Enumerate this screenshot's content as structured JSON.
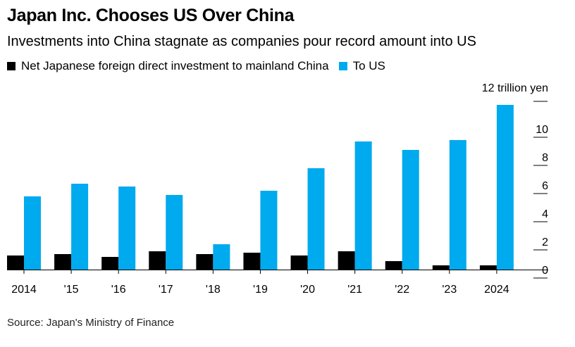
{
  "header": {
    "title": "Japan Inc. Chooses US Over China",
    "subtitle": "Investments into China stagnate as companies pour record amount into US"
  },
  "legend": {
    "china_label": "Net Japanese foreign direct investment to mainland China",
    "us_label": "To US"
  },
  "footer": {
    "source": "Source: Japan's Ministry of Finance"
  },
  "colors": {
    "china": "#000000",
    "us": "#00aaee"
  },
  "chart_data": {
    "type": "bar",
    "title": "Japan Inc. Chooses US Over China",
    "subtitle": "Investments into China stagnate as companies pour record amount into US",
    "categories": [
      "2014",
      "'15",
      "'16",
      "'17",
      "'18",
      "'19",
      "'20",
      "'21",
      "'22",
      "'23",
      "2024"
    ],
    "series": [
      {
        "name": "Net Japanese foreign direct investment to mainland China",
        "values": [
          1.0,
          1.1,
          0.9,
          1.3,
          1.1,
          1.2,
          1.0,
          1.3,
          0.6,
          0.3,
          0.3
        ]
      },
      {
        "name": "To US",
        "values": [
          5.2,
          6.1,
          5.9,
          5.3,
          1.8,
          5.6,
          7.2,
          9.1,
          8.5,
          9.2,
          11.7
        ]
      }
    ],
    "yaxis_unit_label": "12 trillion yen",
    "yticks": [
      "10",
      "8",
      "6",
      "4",
      "2",
      "0"
    ],
    "ytick_values": [
      10,
      8,
      6,
      4,
      2,
      0
    ],
    "ylim": [
      0,
      12
    ],
    "axis_position": "right",
    "xlabel": "",
    "ylabel": "trillion yen"
  }
}
